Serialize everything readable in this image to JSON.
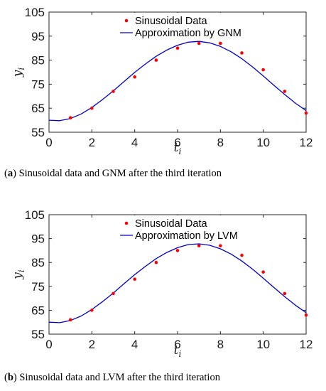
{
  "chart_data": [
    {
      "type": "line",
      "xlabel": "t",
      "xlabel_sub": "i",
      "ylabel": "y",
      "ylabel_sub": "i",
      "xlim": [
        0,
        12
      ],
      "ylim": [
        55,
        105
      ],
      "xticks": [
        0,
        2,
        4,
        6,
        8,
        10,
        12
      ],
      "yticks": [
        55,
        65,
        75,
        85,
        95,
        105
      ],
      "legend_position": "top-center",
      "series": [
        {
          "name": "Sinusoidal Data",
          "kind": "scatter",
          "color": "#ff0000",
          "x": [
            1,
            2,
            3,
            4,
            5,
            6,
            7,
            8,
            9,
            10,
            11,
            12
          ],
          "y": [
            61,
            65,
            72,
            78,
            85,
            90,
            92,
            92,
            88,
            81,
            72,
            63
          ]
        },
        {
          "name": "Approximation by GNM",
          "kind": "line",
          "color": "#0000cc",
          "x": [
            0,
            0.5,
            1,
            1.5,
            2,
            2.5,
            3,
            3.5,
            4,
            4.5,
            5,
            5.5,
            6,
            6.5,
            7,
            7.5,
            8,
            8.5,
            9,
            9.5,
            10,
            10.5,
            11,
            11.5,
            12
          ],
          "y": [
            60.0,
            59.8,
            60.7,
            62.6,
            65.3,
            68.6,
            72.2,
            76.1,
            79.9,
            83.4,
            86.6,
            89.2,
            91.2,
            92.5,
            92.8,
            92.2,
            90.7,
            88.5,
            85.6,
            82.2,
            78.4,
            74.5,
            70.7,
            67.1,
            64.0
          ]
        }
      ],
      "caption_label": "(a)",
      "caption_text": " Sinusoidal data and GNM after the third iteration"
    },
    {
      "type": "line",
      "xlabel": "t",
      "xlabel_sub": "i",
      "ylabel": "y",
      "ylabel_sub": "i",
      "xlim": [
        0,
        12
      ],
      "ylim": [
        55,
        105
      ],
      "xticks": [
        0,
        2,
        4,
        6,
        8,
        10,
        12
      ],
      "yticks": [
        55,
        65,
        75,
        85,
        95,
        105
      ],
      "legend_position": "top-center",
      "series": [
        {
          "name": "Sinusoidal Data",
          "kind": "scatter",
          "color": "#ff0000",
          "x": [
            1,
            2,
            3,
            4,
            5,
            6,
            7,
            8,
            9,
            10,
            11,
            12
          ],
          "y": [
            61,
            65,
            72,
            78,
            85,
            90,
            92,
            92,
            88,
            81,
            72,
            63
          ]
        },
        {
          "name": "Approximation by LVM",
          "kind": "line",
          "color": "#0000cc",
          "x": [
            0,
            0.5,
            1,
            1.5,
            2,
            2.5,
            3,
            3.5,
            4,
            4.5,
            5,
            5.5,
            6,
            6.5,
            7,
            7.5,
            8,
            8.5,
            9,
            9.5,
            10,
            10.5,
            11,
            11.5,
            12
          ],
          "y": [
            60.0,
            59.8,
            60.7,
            62.6,
            65.3,
            68.6,
            72.2,
            76.1,
            79.9,
            83.4,
            86.6,
            89.2,
            91.2,
            92.5,
            92.8,
            92.2,
            90.7,
            88.5,
            85.6,
            82.2,
            78.4,
            74.5,
            70.7,
            67.1,
            64.0
          ]
        }
      ],
      "caption_label": "(b)",
      "caption_text": " Sinusoidal data and LVM after the third iteration"
    }
  ]
}
